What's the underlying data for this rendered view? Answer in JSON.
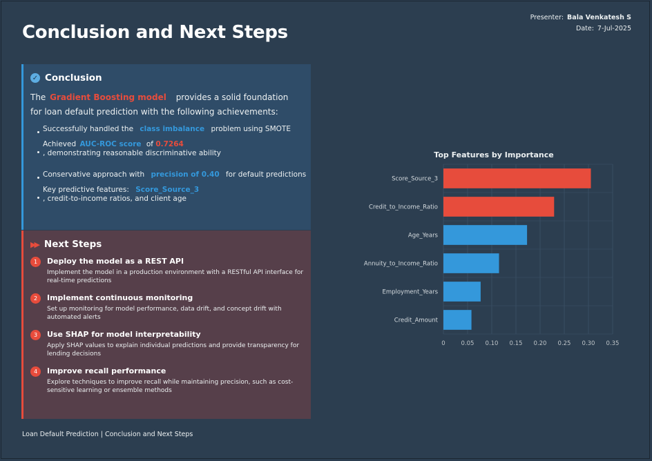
{
  "slide": {
    "title": "Conclusion and Next Steps",
    "presenter_label": "Presenter:",
    "presenter_name": "Bala Venkatesh S",
    "date_label": "Date:",
    "date_value": "7-Jul-2025",
    "footer": "Loan Default Prediction | Conclusion and Next Steps"
  },
  "conclusion": {
    "heading": "Conclusion",
    "intro_pre": "The",
    "intro_highlight": "Gradient Boosting model",
    "intro_post": "provides a solid foundation for loan default prediction with the following achievements:",
    "bullets": [
      {
        "pre": "Successfully handled the",
        "hl": "class imbalance",
        "post": "problem using SMOTE"
      },
      {
        "pre": "Achieved",
        "hl": "AUC-ROC score",
        "mid": "of",
        "val": "0.7264",
        "post": ", demonstrating reasonable discriminative ability"
      },
      {
        "pre": "Conservative approach with",
        "hl": "precision of 0.40",
        "post": "for default predictions"
      },
      {
        "pre": "Key predictive features:",
        "hl": "Score_Source_3",
        "post": ", credit-to-income ratios, and client age"
      }
    ]
  },
  "next_steps": {
    "heading": "Next Steps",
    "items": [
      {
        "num": "1",
        "title": "Deploy the model as a REST API",
        "desc": "Implement the model in a production environment with a RESTful API interface for real-time predictions"
      },
      {
        "num": "2",
        "title": "Implement continuous monitoring",
        "desc": "Set up monitoring for model performance, data drift, and concept drift with automated alerts"
      },
      {
        "num": "3",
        "title": "Use SHAP for model interpretability",
        "desc": "Apply SHAP values to explain individual predictions and provide transparency for lending decisions"
      },
      {
        "num": "4",
        "title": "Improve recall performance",
        "desc": "Explore techniques to improve recall while maintaining precision, such as cost-sensitive learning or ensemble methods"
      }
    ]
  },
  "chart_data": {
    "type": "bar",
    "orientation": "horizontal",
    "title": "Top Features by Importance",
    "categories": [
      "Score_Source_3",
      "Credit_to_Income_Ratio",
      "Age_Years",
      "Annuity_to_Income_Ratio",
      "Employment_Years",
      "Credit_Amount"
    ],
    "values": [
      0.305,
      0.229,
      0.173,
      0.115,
      0.077,
      0.058
    ],
    "colors": [
      "#e74c3c",
      "#e74c3c",
      "#3498db",
      "#3498db",
      "#3498db",
      "#3498db"
    ],
    "xlim": [
      0,
      0.35
    ],
    "ticks": [
      "0",
      "0.05",
      "0.10",
      "0.15",
      "0.20",
      "0.25",
      "0.30",
      "0.35"
    ],
    "grid": true
  },
  "colors": {
    "background": "#2c3e50",
    "accent_red": "#e74c3c",
    "accent_blue": "#3498db"
  }
}
